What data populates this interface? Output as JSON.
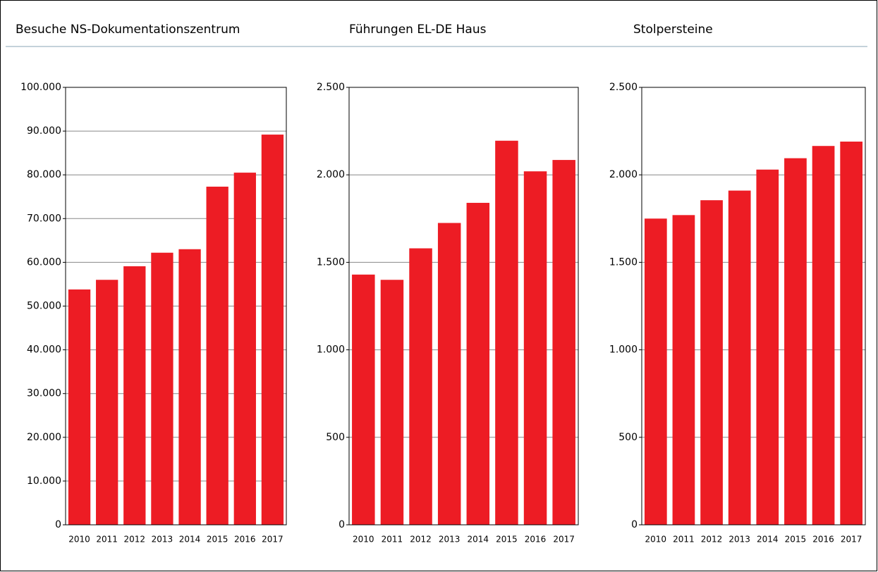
{
  "chart_data": [
    {
      "type": "bar",
      "title": "Besuche NS-Dokumentationszentrum",
      "categories": [
        "2010",
        "2011",
        "2012",
        "2013",
        "2014",
        "2015",
        "2016",
        "2017"
      ],
      "values": [
        53800,
        56000,
        59100,
        62200,
        63000,
        77300,
        80500,
        89200
      ],
      "color": "#ed1c24",
      "ylim": [
        0,
        100000
      ],
      "grid": true,
      "yticks": [
        0,
        {
          "value": 10000,
          "label": "10.000"
        },
        {
          "value": 20000,
          "label": "20.000"
        },
        {
          "value": 30000,
          "label": "30.000"
        },
        {
          "value": 40000,
          "label": "40.000"
        },
        {
          "value": 50000,
          "label": "50.000"
        },
        {
          "value": 60000,
          "label": "60.000"
        },
        {
          "value": 70000,
          "label": "70.000"
        },
        {
          "value": 80000,
          "label": "80.000"
        },
        {
          "value": 90000,
          "label": "90.000"
        },
        {
          "value": 100000,
          "label": "100.000"
        }
      ]
    },
    {
      "type": "bar",
      "title": "Führungen EL-DE Haus",
      "categories": [
        "2010",
        "2011",
        "2012",
        "2013",
        "2014",
        "2015",
        "2016",
        "2017"
      ],
      "values": [
        1430,
        1400,
        1580,
        1725,
        1840,
        2195,
        2020,
        2085
      ],
      "color": "#ed1c24",
      "ylim": [
        0,
        2500
      ],
      "grid": true,
      "yticks": [
        0,
        500,
        {
          "value": 1000,
          "label": "1.000"
        },
        {
          "value": 1500,
          "label": "1.500"
        },
        {
          "value": 2000,
          "label": "2.000"
        },
        {
          "value": 2500,
          "label": "2.500"
        }
      ]
    },
    {
      "type": "bar",
      "title": "Stolpersteine",
      "categories": [
        "2010",
        "2011",
        "2012",
        "2013",
        "2014",
        "2015",
        "2016",
        "2017"
      ],
      "values": [
        1750,
        1770,
        1855,
        1910,
        2030,
        2095,
        2165,
        2190
      ],
      "color": "#ed1c24",
      "ylim": [
        0,
        2500
      ],
      "grid": true,
      "yticks": [
        0,
        500,
        {
          "value": 1000,
          "label": "1.000"
        },
        {
          "value": 1500,
          "label": "1.500"
        },
        {
          "value": 2000,
          "label": "2.000"
        },
        {
          "value": 2500,
          "label": "2.500"
        }
      ]
    }
  ]
}
